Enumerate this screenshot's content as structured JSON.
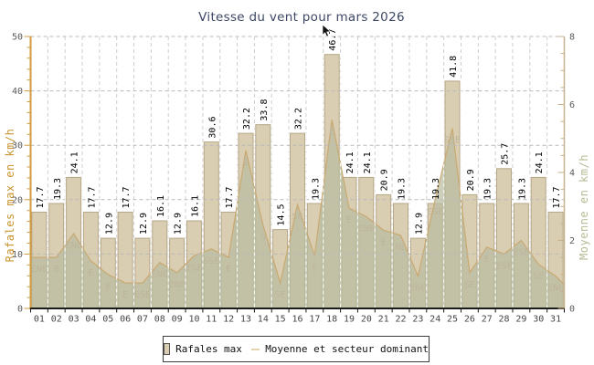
{
  "title": "Vitesse du vent pour mars 2026",
  "legend": {
    "gusts": "Rafales max",
    "average": "Moyenne et secteur dominant"
  },
  "colors": {
    "title": "#3d4766",
    "bar_fill": "#d9cdb2",
    "bar_border": "#b6a788",
    "avg_line": "#c9a972",
    "avg_area": "rgba(184,188,160,0.72)",
    "left_axis": "#d19b3f",
    "left_axis_title": "#c8952f",
    "right_axis": "#c6b28c",
    "right_axis_title": "#b2bd94",
    "grid_h": "#b9b9b9",
    "grid_v": "#cfcfcf",
    "grid_v_over_bars": "rgba(255,255,255,0.92)",
    "tick_label": "#5a5a5a",
    "day_label": "#454545",
    "value_label": "#000000",
    "direction_label": "#bdb49c",
    "x_axis": "#1a1a1a"
  },
  "chart_data": {
    "type": "bar",
    "title": "Vitesse du vent pour mars 2026",
    "categories": [
      "01",
      "02",
      "03",
      "04",
      "05",
      "06",
      "07",
      "08",
      "09",
      "10",
      "11",
      "12",
      "13",
      "14",
      "15",
      "16",
      "17",
      "18",
      "19",
      "20",
      "21",
      "22",
      "23",
      "24",
      "25",
      "26",
      "27",
      "28",
      "29",
      "30",
      "31"
    ],
    "series": [
      {
        "name": "Rafales max",
        "type": "bar",
        "axis": "left",
        "values": [
          17.7,
          19.3,
          24.1,
          17.7,
          12.9,
          17.7,
          12.9,
          16.1,
          12.9,
          16.1,
          30.6,
          17.7,
          32.2,
          33.8,
          14.5,
          32.2,
          19.3,
          46.7,
          24.1,
          24.1,
          20.9,
          19.3,
          12.9,
          19.3,
          41.8,
          20.9,
          19.3,
          25.7,
          19.3,
          24.1,
          17.7
        ]
      },
      {
        "name": "Moyenne et secteur dominant",
        "type": "area-line",
        "axis": "right",
        "values": [
          1.5,
          1.5,
          2.2,
          1.4,
          1.0,
          0.75,
          0.75,
          1.35,
          1.05,
          1.55,
          1.75,
          1.5,
          4.65,
          2.45,
          0.75,
          3.05,
          1.55,
          5.55,
          2.95,
          2.7,
          2.3,
          2.15,
          0.95,
          3.2,
          5.3,
          1.05,
          1.8,
          1.6,
          2.0,
          1.3,
          0.95
        ],
        "directions": [
          "ENE",
          "E",
          "ENE",
          "E",
          "E",
          "E",
          "ESE",
          "ENE",
          "ENE",
          "ESE",
          "SSE",
          "E",
          "S",
          "S",
          "SE",
          "SE",
          "E",
          "E",
          "E",
          "ENE",
          "E",
          "NE",
          "ENE",
          "ESE",
          "SSE",
          "SE",
          "E",
          "ESE",
          "ESE",
          "SE",
          "ENE"
        ],
        "edge_left": 1.5,
        "edge_right": 0.7
      }
    ],
    "left_axis": {
      "label": "Rafales max en km/h",
      "min": 0,
      "max": 50,
      "major_ticks": [
        0,
        10,
        20,
        30,
        40,
        50
      ],
      "minor_step": 2
    },
    "right_axis": {
      "label": "Moyenne en km/h",
      "min": 0,
      "max": 8,
      "major_ticks": [
        0,
        2,
        4,
        6,
        8
      ],
      "minor_step": 0.5
    },
    "x_axis": {
      "min_label": "01",
      "max_label": "31"
    },
    "grid": "horizontal dashed at left-axis majors, vertical dashed at day boundaries",
    "legend_position": "bottom-center"
  }
}
